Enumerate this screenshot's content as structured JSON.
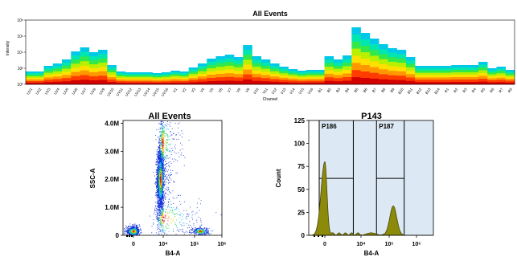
{
  "colors": {
    "spectrum": [
      "#d40000",
      "#ff3b00",
      "#ff9800",
      "#ffe000",
      "#b8f000",
      "#32e84a",
      "#00e6b0",
      "#00c8e8"
    ],
    "scatter_blue": "#1030d8",
    "gate_fill": "#dce9f5",
    "histogram_fill": "#8c8a0a",
    "histogram_line": "#4a4805"
  },
  "chart_data": [
    {
      "type": "heatmap",
      "title": "All Events",
      "xlabel": "Channel",
      "ylabel": "Intensity",
      "y_scale": "log",
      "y_ticks": [
        "10⁰",
        "10²",
        "10⁴",
        "10⁶",
        "10⁸"
      ],
      "categories": [
        "UV1",
        "UV2",
        "UV3",
        "UV4",
        "UV5",
        "UV6",
        "UV7",
        "UV8",
        "UV9",
        "UV10",
        "UV11",
        "UV12",
        "UV13",
        "UV14",
        "UV15",
        "UV16",
        "V1",
        "V2",
        "V3",
        "V4",
        "V5",
        "V6",
        "V7",
        "V8",
        "V9",
        "V10",
        "V11",
        "V12",
        "V13",
        "V14",
        "V15",
        "V16",
        "B1",
        "B2",
        "B3",
        "B4",
        "B5",
        "B6",
        "B7",
        "B8",
        "B9",
        "B10",
        "B11",
        "B12",
        "B13",
        "B14",
        "R1",
        "R2",
        "R3",
        "R4",
        "R5",
        "R6",
        "R7",
        "R8"
      ],
      "upper_log": [
        1.6,
        1.6,
        2.3,
        2.6,
        3.1,
        4.1,
        4.6,
        4.0,
        4.3,
        2.4,
        1.6,
        1.5,
        1.5,
        1.5,
        1.4,
        1.5,
        1.7,
        1.6,
        2.1,
        2.6,
        3.2,
        3.5,
        3.7,
        3.4,
        4.9,
        3.5,
        3.1,
        2.6,
        2.2,
        1.9,
        1.7,
        1.8,
        1.8,
        3.5,
        3.1,
        3.6,
        7.1,
        6.4,
        5.7,
        5.0,
        4.5,
        4.3,
        3.4,
        2.3,
        2.3,
        2.3,
        2.3,
        2.4,
        2.4,
        2.4,
        2.8,
        2.0,
        2.2,
        1.8
      ],
      "lower_log": 0.0
    },
    {
      "type": "scatter",
      "title": "All Events",
      "xlabel": "B4-A",
      "ylabel": "SSC-A",
      "x_scale": "biexponential",
      "x_ticks": [
        "0",
        "10⁴",
        "10⁵",
        "10⁶"
      ],
      "y_ticks": [
        "0",
        "1.0M",
        "2.0M",
        "3.0M",
        "4.0M"
      ],
      "ylim": [
        0,
        4100000
      ],
      "populations": [
        {
          "x_center_log": 3.6,
          "y_center": 2000000,
          "x_spread_log": 0.25,
          "y_spread": 550000,
          "events": 2200
        },
        {
          "x_center_log": 3.9,
          "y_center": 3300000,
          "x_spread_log": 0.3,
          "y_spread": 600000,
          "events": 500
        },
        {
          "x_center_log": 0.0,
          "y_center": 150000,
          "x_spread_log": 0.4,
          "y_spread": 90000,
          "events": 650
        },
        {
          "x_center_log": 5.2,
          "y_center": 150000,
          "x_spread_log": 0.15,
          "y_spread": 70000,
          "events": 350
        },
        {
          "x_center_log": 4.0,
          "y_center": 600000,
          "x_spread_log": 0.6,
          "y_spread": 400000,
          "events": 400
        }
      ]
    },
    {
      "type": "area",
      "title": "P143",
      "xlabel": "B4-A",
      "ylabel": "Count",
      "x_scale": "biexponential",
      "x_ticks": [
        "0",
        "10⁴",
        "10⁵",
        "10⁶"
      ],
      "y_ticks": [
        "0",
        "25",
        "50",
        "75",
        "100",
        "125"
      ],
      "ylim": [
        0,
        125
      ],
      "peaks": [
        {
          "x_center_log": 0.0,
          "height": 80
        },
        {
          "x_center_log": 5.15,
          "height": 32
        }
      ],
      "gates": [
        {
          "label": "P186",
          "x_from_log": -0.35,
          "x_to_log": 3.15
        },
        {
          "label": "P187",
          "x_from_log": 4.55,
          "x_to_log": 5.55
        }
      ],
      "gate_marker_count": 62
    }
  ]
}
